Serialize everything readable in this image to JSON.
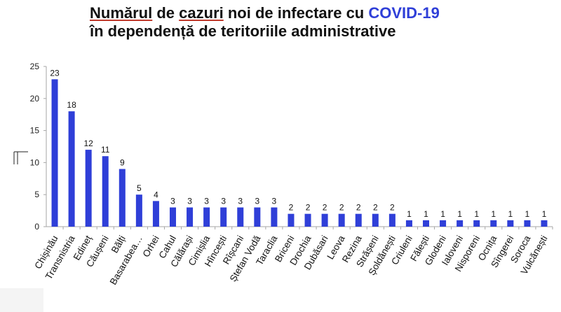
{
  "title": {
    "line1_part_a": "Numărul",
    "line1_part_b": " de ",
    "line1_part_c": "cazuri",
    "line1_part_d": " noi de infectare cu ",
    "line1_accent": "COVID-19",
    "line2": "în dependență de teritoriile administrative"
  },
  "chart_data": {
    "type": "bar",
    "categories": [
      "Chișinău",
      "Transnistria",
      "Edineț",
      "Căușeni",
      "Bălți",
      "Basarabea…",
      "Orhei",
      "Cahul",
      "Călărași",
      "Cimișlia",
      "Hîncești",
      "Rîșcani",
      "Ștefan Vodă",
      "Taraclia",
      "Briceni",
      "Drochia",
      "Dubăsari",
      "Leova",
      "Rezina",
      "Strășeni",
      "Șoldănești",
      "Criuleni",
      "Fălești",
      "Glodeni",
      "Ialoveni",
      "Nisporeni",
      "Ocnița",
      "Sîngerei",
      "Soroca",
      "Vulcănești"
    ],
    "values": [
      23,
      18,
      12,
      11,
      9,
      5,
      4,
      3,
      3,
      3,
      3,
      3,
      3,
      3,
      2,
      2,
      2,
      2,
      2,
      2,
      2,
      1,
      1,
      1,
      1,
      1,
      1,
      1,
      1,
      1
    ],
    "data_labels": [
      "23",
      "18",
      "12",
      "11",
      "9",
      "5",
      "4",
      "3",
      "3",
      "3",
      "3",
      "3",
      "3",
      "3",
      "2",
      "2",
      "2",
      "2",
      "2",
      "2",
      "2",
      "1",
      "1",
      "1",
      "1",
      "1",
      "1",
      "1",
      "1",
      "1"
    ],
    "ylim": [
      0,
      25
    ],
    "yticks": [
      "0",
      "5",
      "10",
      "15",
      "20",
      "25"
    ],
    "grid": false,
    "bar_color": "#2f3fd8",
    "axis_color": "#a6a6a6"
  }
}
